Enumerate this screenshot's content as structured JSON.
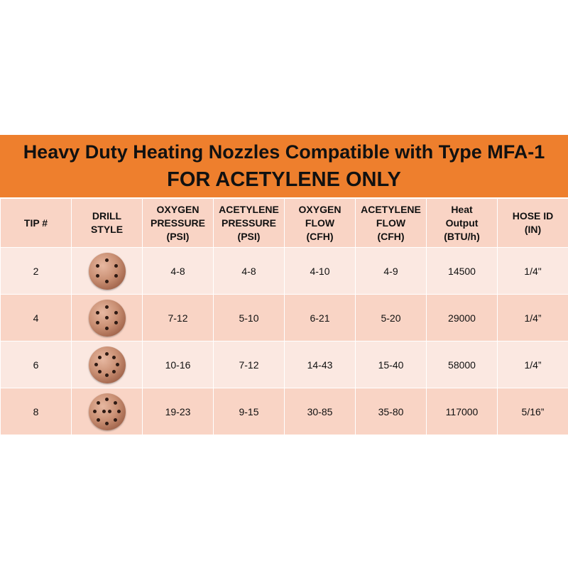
{
  "title": {
    "line1": "Heavy Duty Heating Nozzles Compatible with Type MFA-1",
    "line2": "FOR ACETYLENE ONLY"
  },
  "colors": {
    "title_background": "#ee7f2d",
    "header_row": "#f9d4c5",
    "row_light": "#fbe8e1",
    "row_dark": "#f9d4c5"
  },
  "table": {
    "headers": [
      [
        "TIP #"
      ],
      [
        "DRILL",
        "STYLE"
      ],
      [
        "OXYGEN",
        "PRESSURE",
        "(PSI)"
      ],
      [
        "ACETYLENE",
        "PRESSURE",
        "(PSI)"
      ],
      [
        "OXYGEN",
        "FLOW",
        "(CFH)"
      ],
      [
        "ACETYLENE",
        "FLOW",
        "(CFH)"
      ],
      [
        "Heat",
        "Output",
        "(BTU/h)"
      ],
      [
        "HOSE ID",
        "(IN)"
      ]
    ],
    "rows": [
      {
        "tip": "2",
        "drill_icon": "nozzle-tip-6-holes-icon",
        "holes": 6,
        "oxygen_pressure": "4-8",
        "acetylene_pressure": "4-8",
        "oxygen_flow": "4-10",
        "acetylene_flow": "4-9",
        "heat_output": "14500",
        "hose_id": "1/4\""
      },
      {
        "tip": "4",
        "drill_icon": "nozzle-tip-7-holes-icon",
        "holes": 7,
        "oxygen_pressure": "7-12",
        "acetylene_pressure": "5-10",
        "oxygen_flow": "6-21",
        "acetylene_flow": "5-20",
        "heat_output": "29000",
        "hose_id": "1/4”"
      },
      {
        "tip": "6",
        "drill_icon": "nozzle-tip-8-holes-icon",
        "holes": 8,
        "oxygen_pressure": "10-16",
        "acetylene_pressure": "7-12",
        "oxygen_flow": "14-43",
        "acetylene_flow": "15-40",
        "heat_output": "58000",
        "hose_id": "1/4”"
      },
      {
        "tip": "8",
        "drill_icon": "nozzle-tip-10-holes-icon",
        "holes": 10,
        "oxygen_pressure": "19-23",
        "acetylene_pressure": "9-15",
        "oxygen_flow": "30-85",
        "acetylene_flow": "35-80",
        "heat_output": "117000",
        "hose_id": "5/16”"
      }
    ]
  }
}
